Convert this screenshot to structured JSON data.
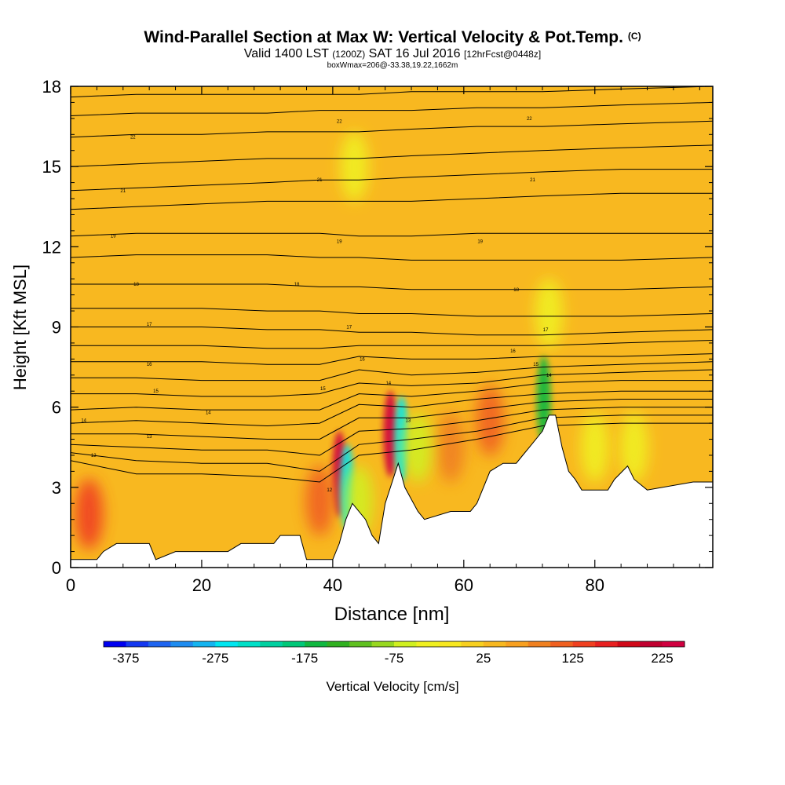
{
  "title": "Wind-Parallel Section at Max W: Vertical Velocity & Pot.Temp.",
  "title_symbol": "(C)",
  "subtitle": {
    "valid": "Valid 1400 LST",
    "zulu": "(1200Z)",
    "date": "SAT 16 Jul 2016",
    "forecast": "[12hrFcst@0448z]"
  },
  "note": "boxWmax=206@-33.38,19.22,1662m",
  "chart_data": {
    "type": "heatmap",
    "xlabel": "Distance [nm]",
    "ylabel": "Height [Kft MSL]",
    "xlim": [
      0,
      98
    ],
    "ylim": [
      0,
      18
    ],
    "x_ticks": [
      0,
      20,
      40,
      60,
      80
    ],
    "y_ticks": [
      0,
      3,
      6,
      9,
      12,
      15,
      18
    ],
    "colorbar": {
      "label": "Vertical Velocity [cm/s]",
      "min": -400,
      "max": 250,
      "step": 25,
      "tick_values": [
        -375,
        -275,
        -175,
        -75,
        25,
        125,
        225
      ],
      "colors": [
        "#0000f0",
        "#1438f0",
        "#1e64f0",
        "#1e8cf0",
        "#14b4f0",
        "#00e6f0",
        "#00e0c8",
        "#00d0a0",
        "#00c878",
        "#10b840",
        "#30b020",
        "#60c020",
        "#98d820",
        "#d0f020",
        "#f0f020",
        "#f8e820",
        "#f8d020",
        "#f8b820",
        "#f8a020",
        "#f08020",
        "#f06020",
        "#f04020",
        "#e82020",
        "#d00818",
        "#c00030",
        "#d00040"
      ]
    },
    "background_value": 25,
    "terrain_kft": [
      [
        0,
        0.3
      ],
      [
        2,
        0.3
      ],
      [
        4,
        0.3
      ],
      [
        5,
        0.6
      ],
      [
        7,
        0.9
      ],
      [
        12,
        0.9
      ],
      [
        13,
        0.3
      ],
      [
        16,
        0.6
      ],
      [
        24,
        0.6
      ],
      [
        26,
        0.9
      ],
      [
        31,
        0.9
      ],
      [
        32,
        1.2
      ],
      [
        35,
        1.2
      ],
      [
        36,
        0.3
      ],
      [
        40,
        0.3
      ],
      [
        41,
        0.9
      ],
      [
        42,
        1.8
      ],
      [
        43,
        2.4
      ],
      [
        45,
        1.8
      ],
      [
        46,
        1.2
      ],
      [
        47,
        0.9
      ],
      [
        48,
        2.4
      ],
      [
        50,
        3.9
      ],
      [
        51,
        3.0
      ],
      [
        53,
        2.1
      ],
      [
        54,
        1.8
      ],
      [
        58,
        2.1
      ],
      [
        61,
        2.1
      ],
      [
        62,
        2.4
      ],
      [
        63,
        3.0
      ],
      [
        64,
        3.6
      ],
      [
        66,
        3.9
      ],
      [
        68,
        3.9
      ],
      [
        69,
        4.2
      ],
      [
        70,
        4.5
      ],
      [
        72,
        5.1
      ],
      [
        73,
        5.7
      ],
      [
        74,
        5.7
      ],
      [
        75,
        4.5
      ],
      [
        76,
        3.6
      ],
      [
        77,
        3.3
      ],
      [
        78,
        2.9
      ],
      [
        82,
        2.9
      ],
      [
        83,
        3.3
      ],
      [
        85,
        3.8
      ],
      [
        86,
        3.3
      ],
      [
        88,
        2.9
      ],
      [
        95,
        3.2
      ],
      [
        98,
        3.2
      ]
    ],
    "cells": [
      {
        "x": 2.8,
        "y": 2.0,
        "value": 125
      },
      {
        "x": 41.0,
        "y": 3.5,
        "value": 225
      },
      {
        "x": 48.8,
        "y": 5.0,
        "value": 225
      },
      {
        "x": 64.0,
        "y": 5.5,
        "value": 100
      },
      {
        "x": 38.0,
        "y": 2.5,
        "value": 100
      },
      {
        "x": 58.0,
        "y": 4.5,
        "value": 75
      },
      {
        "x": 42.2,
        "y": 3.0,
        "value": -275
      },
      {
        "x": 50.5,
        "y": 4.8,
        "value": -275
      },
      {
        "x": 72.2,
        "y": 6.3,
        "value": -175
      },
      {
        "x": 44.0,
        "y": 2.5,
        "value": -75
      },
      {
        "x": 53.0,
        "y": 4.5,
        "value": -75
      },
      {
        "x": 80.0,
        "y": 4.5,
        "value": -50
      },
      {
        "x": 86.0,
        "y": 4.5,
        "value": -50
      },
      {
        "x": 43.3,
        "y": 15.0,
        "value": -50
      },
      {
        "x": 73.0,
        "y": 9.5,
        "value": -50
      }
    ],
    "isentropes_kft": [
      [
        17.6,
        17.7,
        17.7,
        17.7,
        17.7,
        17.7,
        17.8,
        17.8,
        17.8,
        17.9,
        18.0
      ],
      [
        16.9,
        17.0,
        17.0,
        17.0,
        17.1,
        17.1,
        17.1,
        17.2,
        17.2,
        17.3,
        17.4
      ],
      [
        16.1,
        16.2,
        16.2,
        16.3,
        16.3,
        16.3,
        16.4,
        16.5,
        16.5,
        16.6,
        16.7
      ],
      [
        15.0,
        15.1,
        15.2,
        15.3,
        15.3,
        15.3,
        15.4,
        15.5,
        15.6,
        15.7,
        15.8
      ],
      [
        14.1,
        14.2,
        14.3,
        14.4,
        14.5,
        14.5,
        14.6,
        14.7,
        14.8,
        14.9,
        14.9
      ],
      [
        13.4,
        13.5,
        13.6,
        13.7,
        13.7,
        13.7,
        13.7,
        13.8,
        13.9,
        14.0,
        14.0
      ],
      [
        12.4,
        12.5,
        12.5,
        12.5,
        12.5,
        12.4,
        12.4,
        12.5,
        12.5,
        12.5,
        12.5
      ],
      [
        11.6,
        11.7,
        11.7,
        11.7,
        11.6,
        11.6,
        11.5,
        11.5,
        11.5,
        11.5,
        11.6
      ],
      [
        10.6,
        10.6,
        10.6,
        10.6,
        10.5,
        10.5,
        10.4,
        10.4,
        10.4,
        10.4,
        10.5
      ],
      [
        9.7,
        9.7,
        9.7,
        9.6,
        9.6,
        9.5,
        9.5,
        9.4,
        9.4,
        9.4,
        9.5
      ],
      [
        9.0,
        9.0,
        9.0,
        8.9,
        8.9,
        8.8,
        8.8,
        8.7,
        8.7,
        8.8,
        8.9
      ],
      [
        8.3,
        8.3,
        8.3,
        8.2,
        8.2,
        8.3,
        8.3,
        8.3,
        8.3,
        8.4,
        8.5
      ],
      [
        7.7,
        7.7,
        7.7,
        7.6,
        7.6,
        7.9,
        7.8,
        7.8,
        7.9,
        7.9,
        8.0
      ],
      [
        7.1,
        7.1,
        7.0,
        7.0,
        7.0,
        7.4,
        7.2,
        7.3,
        7.5,
        7.6,
        7.7
      ],
      [
        6.5,
        6.5,
        6.4,
        6.4,
        6.5,
        6.9,
        6.8,
        6.9,
        7.2,
        7.3,
        7.4
      ],
      [
        5.9,
        6.0,
        5.9,
        5.9,
        5.9,
        6.5,
        6.4,
        6.6,
        6.9,
        7.0,
        7.0
      ],
      [
        5.4,
        5.5,
        5.4,
        5.3,
        5.4,
        6.1,
        6.0,
        6.3,
        6.5,
        6.6,
        6.6
      ],
      [
        5.0,
        5.0,
        4.9,
        4.8,
        4.8,
        5.6,
        5.6,
        5.9,
        6.2,
        6.3,
        6.3
      ],
      [
        4.6,
        4.5,
        4.4,
        4.4,
        4.2,
        5.1,
        5.2,
        5.5,
        5.9,
        6.0,
        6.0
      ],
      [
        4.3,
        4.0,
        3.9,
        3.9,
        3.6,
        4.6,
        4.8,
        5.1,
        5.6,
        5.7,
        5.7
      ],
      [
        4.0,
        3.5,
        3.5,
        3.4,
        3.2,
        4.2,
        4.4,
        4.8,
        5.3,
        5.4,
        5.4
      ]
    ],
    "isentrope_x": [
      0,
      10,
      20,
      30,
      38,
      44,
      52,
      62,
      72,
      84,
      98
    ],
    "contour_labels": [
      {
        "x": 9.5,
        "y": 16.1,
        "text": "22"
      },
      {
        "x": 41.0,
        "y": 16.7,
        "text": "22"
      },
      {
        "x": 70.0,
        "y": 16.8,
        "text": "22"
      },
      {
        "x": 8.0,
        "y": 14.1,
        "text": "21"
      },
      {
        "x": 38.0,
        "y": 14.5,
        "text": "21"
      },
      {
        "x": 70.5,
        "y": 14.5,
        "text": "21"
      },
      {
        "x": 6.5,
        "y": 12.4,
        "text": "19"
      },
      {
        "x": 41.0,
        "y": 12.2,
        "text": "19"
      },
      {
        "x": 62.5,
        "y": 12.2,
        "text": "19"
      },
      {
        "x": 10.0,
        "y": 10.6,
        "text": "18"
      },
      {
        "x": 34.5,
        "y": 10.6,
        "text": "18"
      },
      {
        "x": 68.0,
        "y": 10.4,
        "text": "18"
      },
      {
        "x": 12.0,
        "y": 9.1,
        "text": "17"
      },
      {
        "x": 42.5,
        "y": 9.0,
        "text": "17"
      },
      {
        "x": 72.5,
        "y": 8.9,
        "text": "17"
      },
      {
        "x": 12.0,
        "y": 7.6,
        "text": "16"
      },
      {
        "x": 44.5,
        "y": 7.8,
        "text": "16"
      },
      {
        "x": 67.5,
        "y": 8.1,
        "text": "16"
      },
      {
        "x": 13.0,
        "y": 6.6,
        "text": "15"
      },
      {
        "x": 38.5,
        "y": 6.7,
        "text": "15"
      },
      {
        "x": 71.0,
        "y": 7.6,
        "text": "15"
      },
      {
        "x": 21.0,
        "y": 5.8,
        "text": "14"
      },
      {
        "x": 48.5,
        "y": 6.9,
        "text": "14"
      },
      {
        "x": 73.0,
        "y": 7.2,
        "text": "14"
      },
      {
        "x": 2.0,
        "y": 5.5,
        "text": "14"
      },
      {
        "x": 12.0,
        "y": 4.9,
        "text": "13"
      },
      {
        "x": 51.5,
        "y": 5.5,
        "text": "13"
      },
      {
        "x": 3.5,
        "y": 4.2,
        "text": "12"
      },
      {
        "x": 39.5,
        "y": 2.9,
        "text": "12"
      }
    ]
  }
}
